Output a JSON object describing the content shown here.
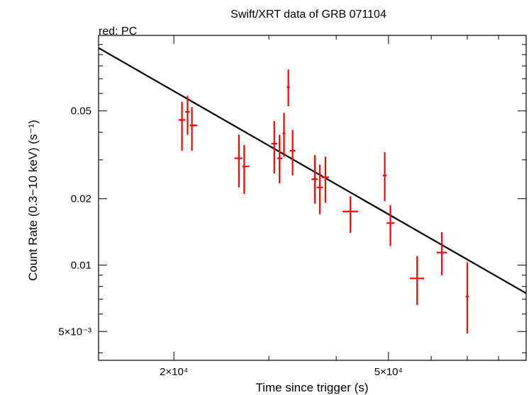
{
  "chart_data": {
    "type": "scatter",
    "title": "Swift/XRT data of GRB 071104",
    "subtitle": "red: PC",
    "xlabel": "Time since trigger (s)",
    "ylabel": "Count Rate (0.3−10 keV) (s⁻¹)",
    "xscale": "log",
    "yscale": "log",
    "xlim": [
      14500,
      90000
    ],
    "ylim": [
      0.0037,
      0.11
    ],
    "x_ticks": [
      {
        "value": 20000,
        "label": "2×10⁴"
      },
      {
        "value": 50000,
        "label": "5×10⁴"
      }
    ],
    "y_ticks": [
      {
        "value": 0.005,
        "label": "5×10⁻³"
      },
      {
        "value": 0.01,
        "label": "0.01"
      },
      {
        "value": 0.02,
        "label": "0.02"
      },
      {
        "value": 0.05,
        "label": "0.05"
      }
    ],
    "grid": false,
    "series": [
      {
        "color": "#ff0000",
        "points": [
          {
            "x": 20700,
            "xlo": 20400,
            "xhi": 21000,
            "y": 0.0455,
            "ylo": 0.033,
            "yhi": 0.055
          },
          {
            "x": 21200,
            "xlo": 21000,
            "xhi": 21400,
            "y": 0.0495,
            "ylo": 0.039,
            "yhi": 0.0585
          },
          {
            "x": 21600,
            "xlo": 21400,
            "xhi": 22100,
            "y": 0.043,
            "ylo": 0.033,
            "yhi": 0.052
          },
          {
            "x": 26400,
            "xlo": 25900,
            "xhi": 26800,
            "y": 0.0305,
            "ylo": 0.0225,
            "yhi": 0.039
          },
          {
            "x": 27000,
            "xlo": 26800,
            "xhi": 27600,
            "y": 0.028,
            "ylo": 0.021,
            "yhi": 0.035
          },
          {
            "x": 30700,
            "xlo": 30300,
            "xhi": 31100,
            "y": 0.0355,
            "ylo": 0.026,
            "yhi": 0.045
          },
          {
            "x": 31400,
            "xlo": 31100,
            "xhi": 31800,
            "y": 0.0305,
            "ylo": 0.0235,
            "yhi": 0.039
          },
          {
            "x": 32000,
            "xlo": 31800,
            "xhi": 32200,
            "y": 0.0395,
            "ylo": 0.031,
            "yhi": 0.049
          },
          {
            "x": 32600,
            "xlo": 32400,
            "xhi": 32800,
            "y": 0.064,
            "ylo": 0.0525,
            "yhi": 0.077
          },
          {
            "x": 33200,
            "xlo": 32800,
            "xhi": 33600,
            "y": 0.033,
            "ylo": 0.0255,
            "yhi": 0.041
          },
          {
            "x": 36500,
            "xlo": 36000,
            "xhi": 37000,
            "y": 0.0245,
            "ylo": 0.019,
            "yhi": 0.0315
          },
          {
            "x": 37300,
            "xlo": 36800,
            "xhi": 37800,
            "y": 0.0225,
            "ylo": 0.017,
            "yhi": 0.0285
          },
          {
            "x": 38200,
            "xlo": 37600,
            "xhi": 38800,
            "y": 0.025,
            "ylo": 0.0192,
            "yhi": 0.031
          },
          {
            "x": 42500,
            "xlo": 41100,
            "xhi": 43900,
            "y": 0.0175,
            "ylo": 0.014,
            "yhi": 0.0205
          },
          {
            "x": 49200,
            "xlo": 48800,
            "xhi": 49600,
            "y": 0.0255,
            "ylo": 0.0195,
            "yhi": 0.0325
          },
          {
            "x": 50400,
            "xlo": 49600,
            "xhi": 51300,
            "y": 0.0155,
            "ylo": 0.0122,
            "yhi": 0.0187
          },
          {
            "x": 56500,
            "xlo": 54800,
            "xhi": 58200,
            "y": 0.0087,
            "ylo": 0.0066,
            "yhi": 0.011
          },
          {
            "x": 62800,
            "xlo": 61400,
            "xhi": 64200,
            "y": 0.0114,
            "ylo": 0.009,
            "yhi": 0.0141
          },
          {
            "x": 70000,
            "xlo": 69500,
            "xhi": 70500,
            "y": 0.0072,
            "ylo": 0.0049,
            "yhi": 0.0103
          }
        ]
      }
    ],
    "fit_line": {
      "color": "#000000",
      "points": [
        [
          14500,
          0.0965
        ],
        [
          90000,
          0.00745
        ]
      ]
    }
  }
}
